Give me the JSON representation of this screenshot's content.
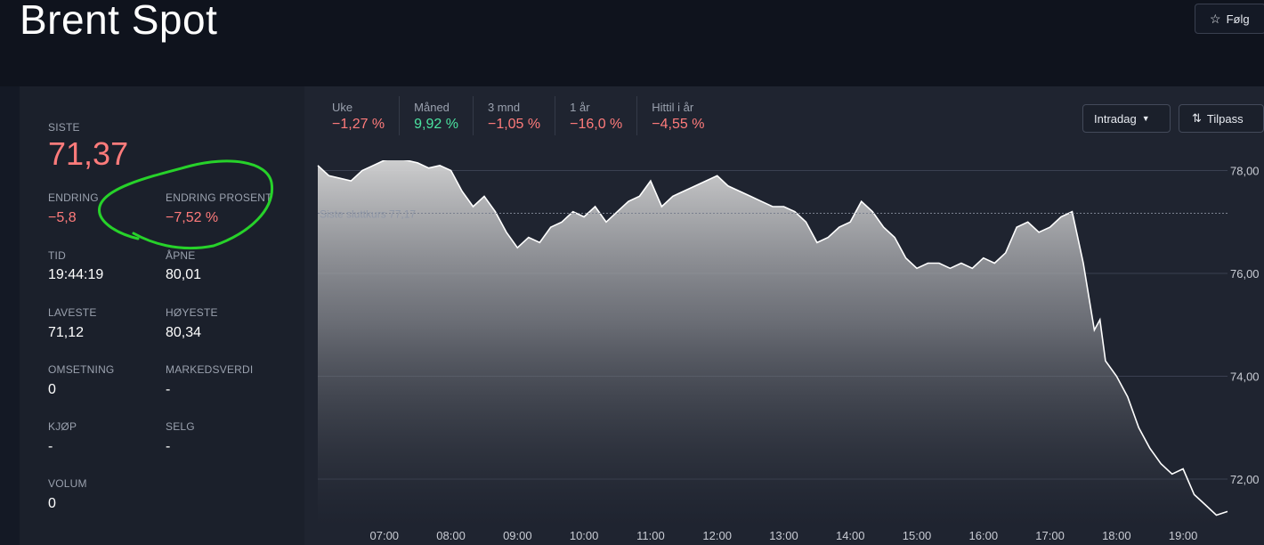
{
  "header": {
    "title": "Brent Spot",
    "follow_label": "Følg",
    "follow_icon": "star-icon"
  },
  "stats": {
    "last": {
      "label": "SISTE",
      "value": "71,37"
    },
    "change": {
      "label": "ENDRING",
      "value": "−5,8"
    },
    "change_pct": {
      "label": "ENDRING PROSENT",
      "value": "−7,52 %"
    },
    "time": {
      "label": "TID",
      "value": "19:44:19"
    },
    "open": {
      "label": "ÅPNE",
      "value": "80,01"
    },
    "low": {
      "label": "LAVESTE",
      "value": "71,12"
    },
    "high": {
      "label": "HØYESTE",
      "value": "80,34"
    },
    "turnover": {
      "label": "OMSETNING",
      "value": "0"
    },
    "market_cap": {
      "label": "MARKEDSVERDI",
      "value": "-"
    },
    "buy": {
      "label": "KJØP",
      "value": "-"
    },
    "sell": {
      "label": "SELG",
      "value": "-"
    },
    "volume": {
      "label": "VOLUM",
      "value": "0"
    }
  },
  "periods": [
    {
      "label": "Uke",
      "value": "−1,27 %",
      "sign": "neg"
    },
    {
      "label": "Måned",
      "value": "9,92 %",
      "sign": "pos"
    },
    {
      "label": "3 mnd",
      "value": "−1,05 %",
      "sign": "neg"
    },
    {
      "label": "1 år",
      "value": "−16,0 %",
      "sign": "neg"
    },
    {
      "label": "Hittil i år",
      "value": "−4,55 %",
      "sign": "neg"
    }
  ],
  "controls": {
    "intraday_label": "Intradag",
    "adjust_label": "Tilpass"
  },
  "colors": {
    "negative": "#ff7b7b",
    "positive": "#4be3a0",
    "annotation": "#27d22a"
  },
  "chart_data": {
    "type": "area",
    "title": "",
    "xlabel": "",
    "ylabel": "",
    "x_ticks": [
      "07:00",
      "08:00",
      "09:00",
      "10:00",
      "11:00",
      "12:00",
      "13:00",
      "14:00",
      "15:00",
      "16:00",
      "17:00",
      "18:00",
      "19:00"
    ],
    "y_ticks": [
      "72,00",
      "74,00",
      "76,00",
      "78,00"
    ],
    "ylim": [
      71.1,
      78.2
    ],
    "reference_line": {
      "label": "Siste sluttkurs 77,17",
      "value": 77.17
    },
    "series": [
      {
        "x": [
          "06:00",
          "06:10",
          "06:20",
          "06:30",
          "06:40",
          "06:50",
          "07:00",
          "07:10",
          "07:20",
          "07:30",
          "07:40",
          "07:50",
          "08:00",
          "08:10",
          "08:20",
          "08:30",
          "08:40",
          "08:50",
          "09:00",
          "09:10",
          "09:20",
          "09:30",
          "09:40",
          "09:50",
          "10:00",
          "10:10",
          "10:20",
          "10:30",
          "10:40",
          "10:50",
          "11:00",
          "11:10",
          "11:20",
          "11:30",
          "11:40",
          "11:50",
          "12:00",
          "12:10",
          "12:20",
          "12:30",
          "12:40",
          "12:50",
          "13:00",
          "13:10",
          "13:20",
          "13:30",
          "13:40",
          "13:50",
          "14:00",
          "14:10",
          "14:20",
          "14:30",
          "14:40",
          "14:50",
          "15:00",
          "15:10",
          "15:20",
          "15:30",
          "15:40",
          "15:50",
          "16:00",
          "16:10",
          "16:20",
          "16:30",
          "16:40",
          "16:50",
          "17:00",
          "17:10",
          "17:20",
          "17:30",
          "17:40",
          "17:45",
          "17:50",
          "18:00",
          "18:10",
          "18:20",
          "18:30",
          "18:40",
          "18:50",
          "19:00",
          "19:10",
          "19:20",
          "19:30",
          "19:40"
        ],
        "values": [
          78.1,
          77.9,
          77.85,
          77.8,
          78.0,
          78.1,
          78.2,
          78.25,
          78.2,
          78.15,
          78.05,
          78.1,
          78.0,
          77.6,
          77.3,
          77.5,
          77.2,
          76.8,
          76.5,
          76.7,
          76.6,
          76.9,
          77.0,
          77.2,
          77.1,
          77.3,
          77.0,
          77.2,
          77.4,
          77.5,
          77.8,
          77.3,
          77.5,
          77.6,
          77.7,
          77.8,
          77.9,
          77.7,
          77.6,
          77.5,
          77.4,
          77.3,
          77.3,
          77.2,
          77.0,
          76.6,
          76.7,
          76.9,
          77.0,
          77.4,
          77.2,
          76.9,
          76.7,
          76.3,
          76.1,
          76.2,
          76.2,
          76.1,
          76.2,
          76.1,
          76.3,
          76.2,
          76.4,
          76.9,
          77.0,
          76.8,
          76.9,
          77.1,
          77.2,
          76.2,
          74.9,
          75.1,
          74.3,
          74.0,
          73.6,
          73.0,
          72.6,
          72.3,
          72.1,
          72.2,
          71.7,
          71.5,
          71.3,
          71.37
        ]
      }
    ]
  }
}
